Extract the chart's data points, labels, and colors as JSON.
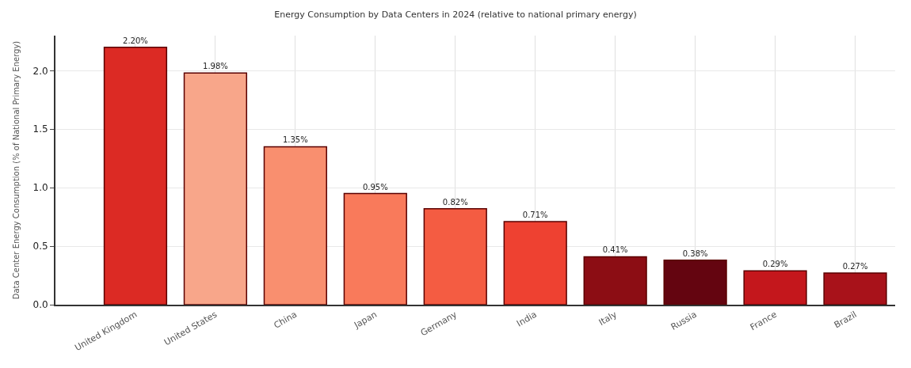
{
  "chart_data": {
    "type": "bar",
    "title": "Energy Consumption by Data Centers in 2024 (relative to national primary energy)",
    "ylabel": "Data Center Energy Consumption (% of National Primary Energy)",
    "categories": [
      "United Kingdom",
      "United States",
      "China",
      "Japan",
      "Germany",
      "India",
      "Italy",
      "Russia",
      "France",
      "Brazil"
    ],
    "values": [
      2.2,
      1.98,
      1.35,
      0.95,
      0.82,
      0.71,
      0.41,
      0.38,
      0.29,
      0.27
    ],
    "value_labels": [
      "2.20%",
      "1.98%",
      "1.35%",
      "0.95%",
      "0.82%",
      "0.71%",
      "0.41%",
      "0.38%",
      "0.29%",
      "0.27%"
    ],
    "colors": [
      "#dc2a24",
      "#f8a68a",
      "#f98f6f",
      "#f97a5b",
      "#f45c42",
      "#ee4131",
      "#8c0d14",
      "#640510",
      "#c4171c",
      "#a8121a"
    ],
    "ylim": [
      0,
      2.3
    ],
    "yticks": [
      {
        "value": 0,
        "label": "0.0"
      },
      {
        "value": 0.5,
        "label": "0.5"
      },
      {
        "value": 1,
        "label": "1.0"
      },
      {
        "value": 1.5,
        "label": "1.5"
      },
      {
        "value": 2,
        "label": "2.0"
      }
    ],
    "grid": true,
    "legend": false
  }
}
